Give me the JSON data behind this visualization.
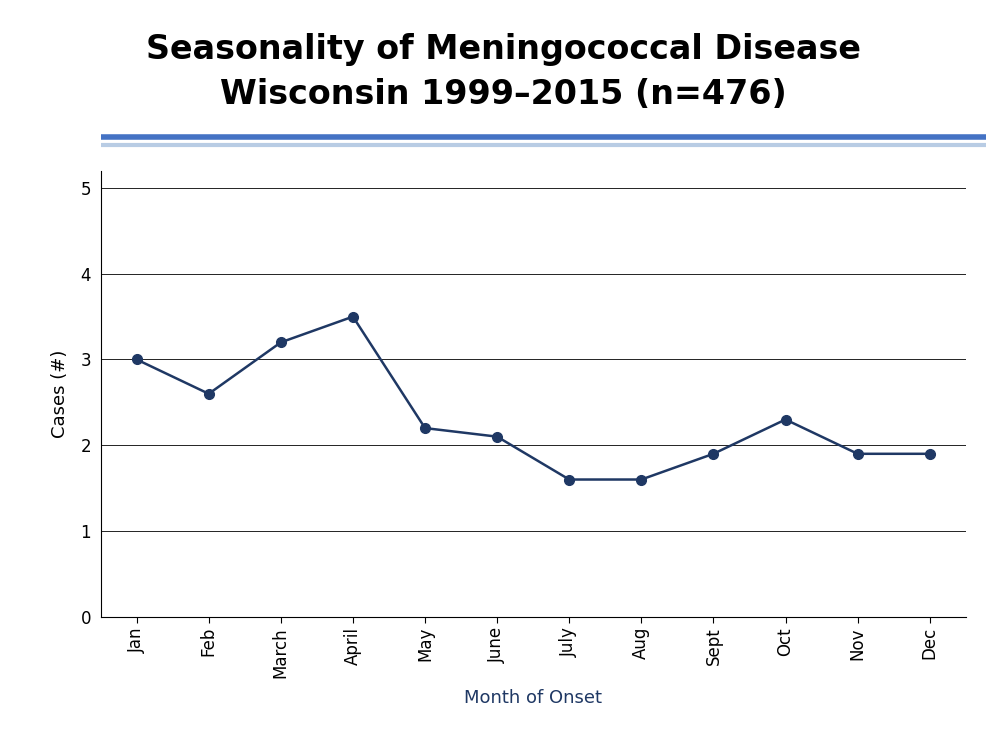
{
  "title_line1": "Seasonality of Meningococcal Disease",
  "title_line2": "Wisconsin 1999–2015 (n=476)",
  "xlabel": "Month of Onset",
  "ylabel": "Cases (#)",
  "months": [
    "Jan",
    "Feb",
    "March",
    "April",
    "May",
    "June",
    "July",
    "Aug",
    "Sept",
    "Oct",
    "Nov",
    "Dec"
  ],
  "values": [
    3.0,
    2.6,
    3.2,
    3.5,
    2.2,
    2.1,
    1.6,
    1.6,
    1.9,
    2.3,
    1.9,
    1.9
  ],
  "ylim": [
    0,
    5.2
  ],
  "yticks": [
    0,
    1,
    2,
    3,
    4,
    5
  ],
  "line_color": "#1F3864",
  "marker_color": "#1F3864",
  "title_color": "#000000",
  "divider_color": "#4472C4",
  "divider_color2": "#B8CCE4",
  "background_color": "#FFFFFF",
  "title_fontsize": 24,
  "axis_label_fontsize": 13,
  "tick_label_fontsize": 12,
  "line_width": 1.8,
  "marker_size": 7
}
